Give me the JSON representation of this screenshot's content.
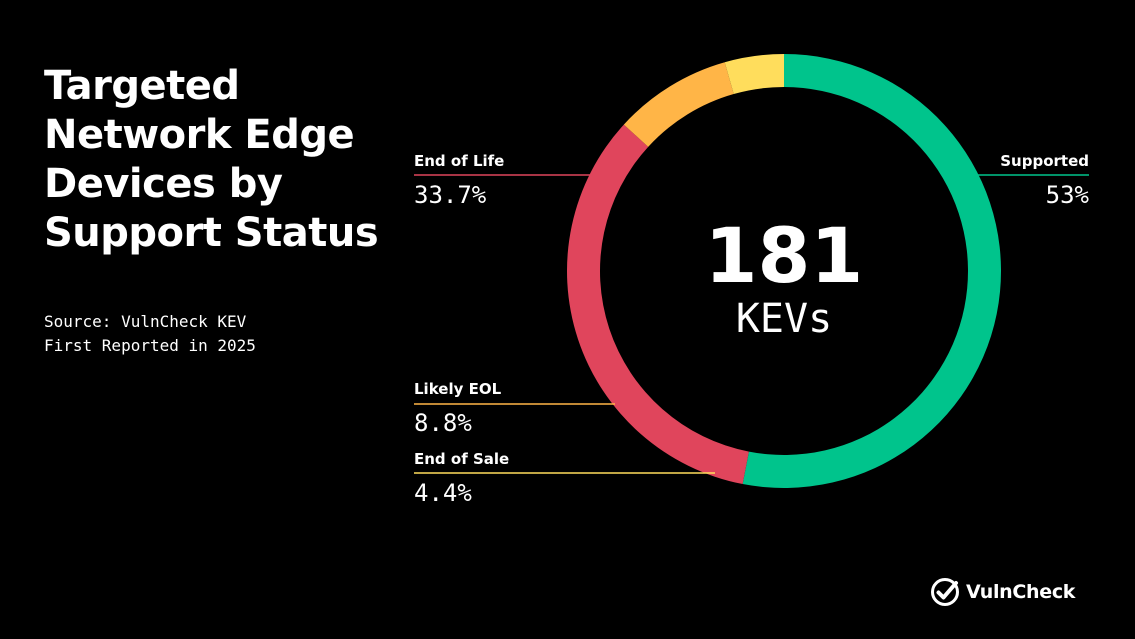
{
  "header": {
    "title": "Targeted Network Edge Devices by Support Status",
    "source": "Source: VulnCheck KEV",
    "reported": "First Reported in 2025"
  },
  "center": {
    "total": "181",
    "unit": "KEVs"
  },
  "brand": {
    "name": "VulnCheck",
    "icon": "vulncheck-check-icon"
  },
  "chart_data": {
    "type": "pie",
    "style": "donut",
    "total": 181,
    "categories": [
      "Supported",
      "End of Life",
      "Likely EOL",
      "End of Sale"
    ],
    "values": [
      53,
      33.7,
      8.8,
      4.4
    ],
    "labels": [
      "53%",
      "33.7%",
      "8.8%",
      "4.4%"
    ],
    "colors": [
      "#00C48C",
      "#E0455C",
      "#FFB547",
      "#FFDD5C"
    ],
    "legend": "callouts with leader lines"
  }
}
